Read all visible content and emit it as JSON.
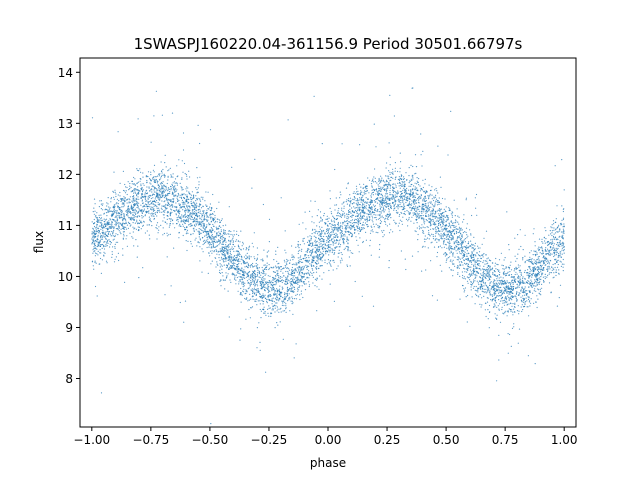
{
  "chart_data": {
    "type": "scatter",
    "title": "1SWASPJ160220.04-361156.9 Period 30501.66797s",
    "xlabel": "phase",
    "ylabel": "flux",
    "xlim": [
      -1.05,
      1.05
    ],
    "ylim": [
      7.05,
      14.28
    ],
    "xticks": [
      -1.0,
      -0.75,
      -0.5,
      -0.25,
      0.0,
      0.25,
      0.5,
      0.75,
      1.0
    ],
    "xtick_labels": [
      "−1.00",
      "−0.75",
      "−0.50",
      "−0.25",
      "0.00",
      "0.25",
      "0.50",
      "0.75",
      "1.00"
    ],
    "yticks": [
      8,
      9,
      10,
      11,
      12,
      13,
      14
    ],
    "ytick_labels": [
      "8",
      "9",
      "10",
      "11",
      "12",
      "13",
      "14"
    ],
    "grid": false,
    "legend": "none",
    "marker_color": "#1f77b4",
    "series": [
      {
        "x": [
          -1.0,
          -0.95,
          -0.9,
          -0.85,
          -0.8,
          -0.75,
          -0.7,
          -0.65,
          -0.6,
          -0.55,
          -0.5,
          -0.45,
          -0.4,
          -0.35,
          -0.3,
          -0.25,
          -0.2,
          -0.15,
          -0.1,
          -0.05,
          0.0,
          0.05,
          0.1,
          0.15,
          0.2,
          0.25,
          0.3,
          0.35,
          0.4,
          0.45,
          0.5,
          0.55,
          0.6,
          0.65,
          0.7,
          0.75,
          0.8,
          0.85,
          0.9,
          0.95,
          1.0
        ],
        "y": [
          10.7,
          10.9,
          11.1,
          11.3,
          11.45,
          11.55,
          11.6,
          11.5,
          11.35,
          11.15,
          10.9,
          10.6,
          10.3,
          10.05,
          9.85,
          9.75,
          9.8,
          9.9,
          10.2,
          10.5,
          10.7,
          10.9,
          11.1,
          11.3,
          11.45,
          11.55,
          11.6,
          11.5,
          11.35,
          11.15,
          10.9,
          10.6,
          10.3,
          10.05,
          9.85,
          9.75,
          9.8,
          9.9,
          10.2,
          10.5,
          10.7
        ]
      }
    ]
  }
}
